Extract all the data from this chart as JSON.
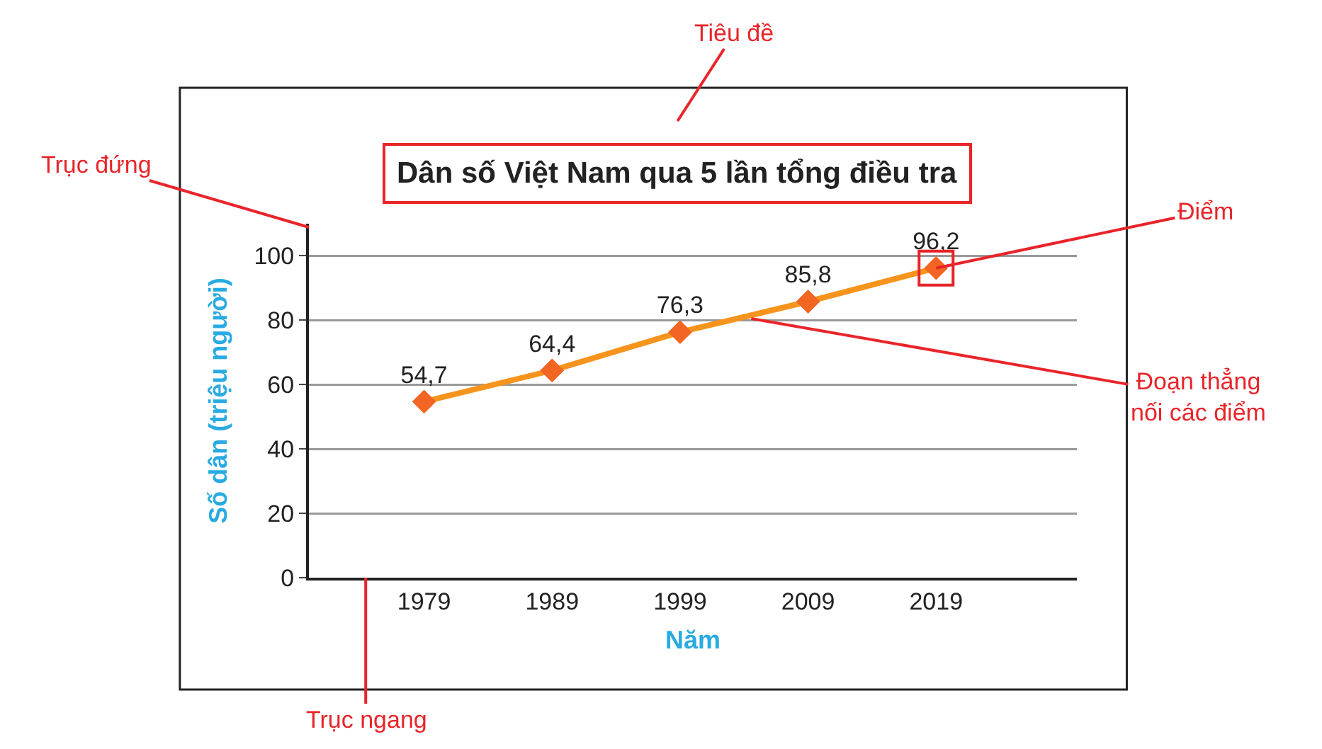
{
  "chart_data": {
    "type": "line",
    "title": "Dân số Việt Nam qua 5 lần tổng điều tra",
    "xlabel": "Năm",
    "ylabel": "Số dân (triệu người)",
    "categories": [
      "1979",
      "1989",
      "1999",
      "2009",
      "2019"
    ],
    "series": [
      {
        "color": "#f7941d",
        "values": [
          54.7,
          64.4,
          76.3,
          85.8,
          96.2
        ],
        "value_labels": [
          "54,7",
          "64,4",
          "76,3",
          "85,8",
          "96,2"
        ]
      }
    ],
    "ylim": [
      0,
      110
    ],
    "yticks": [
      0,
      20,
      40,
      60,
      80,
      100
    ],
    "grid": "y",
    "marker": "diamond",
    "line_style": "solid",
    "annotations": [
      "Tiêu đề",
      "Trục đứng",
      {
        "text": "Điểm",
        "x": "2019",
        "y": 96.2
      },
      "Đoạn thẳng\nnối các điểm",
      "Trục ngang"
    ]
  }
}
